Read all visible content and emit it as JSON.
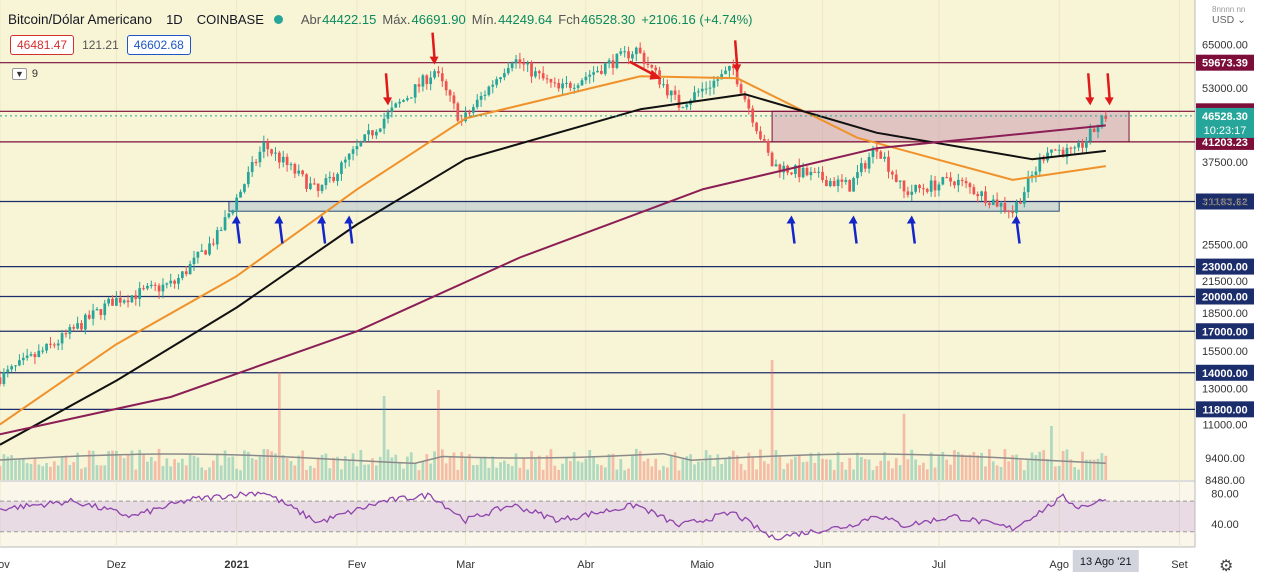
{
  "header": {
    "symbol": "Bitcoin/Dólar Americano",
    "interval": "1D",
    "exchange": "COINBASE",
    "open_label": "Abr",
    "open": "44422.15",
    "high_label": "Máx.",
    "high": "46691.90",
    "low_label": "Mín.",
    "low": "44249.64",
    "close_label": "Fch",
    "close": "46528.30",
    "change": "+2106.16 (+4.74%)"
  },
  "quote": {
    "bid": "46481.47",
    "spread": "121.21",
    "ask": "46602.68"
  },
  "indicator_toggle": {
    "count": "9"
  },
  "currency": "USD",
  "currency_menu": "8nnnn nn",
  "chart_data": {
    "type": "candlestick",
    "x_range": [
      "2020-11-01",
      "2021-09-05"
    ],
    "y_scale": "log",
    "y_range": [
      8480,
      80000
    ],
    "grid": true,
    "x_ticks": [
      "Nov",
      "Dez",
      "2021",
      "Fev",
      "Mar",
      "Abr",
      "Maio",
      "Jun",
      "Jul",
      "Ago",
      "Set"
    ],
    "cursor_date_label": "13 Ago '21",
    "y_ticks": [
      "65000.00",
      "53000.00",
      "37500.00",
      "31183.62",
      "25500.00",
      "21500.00",
      "18500.00",
      "15500.00",
      "13000.00",
      "11000.00",
      "9400.00",
      "8480.00"
    ],
    "colors": {
      "up": "#26a69a",
      "down": "#ef5350",
      "ema_short": "#f0922b",
      "ema_mid": "#111111",
      "ema_long": "#8b1f55",
      "level": "#1c2d6b",
      "resistance": "#7d0e3a",
      "volume_ma": "#8a8a8a",
      "rsi": "#8e44ad"
    },
    "horizontal_levels": [
      {
        "value": 59673.39,
        "label": "59673.39",
        "kind": "resistance"
      },
      {
        "value": 47539.7,
        "label": "47539.70",
        "kind": "resistance"
      },
      {
        "value": 41203.23,
        "label": "41203.23",
        "kind": "resistance"
      },
      {
        "value": 31183.62,
        "label": "31183.62",
        "kind": "support"
      },
      {
        "value": 23000,
        "label": "23000.00",
        "kind": "support"
      },
      {
        "value": 20000,
        "label": "20000.00",
        "kind": "support"
      },
      {
        "value": 17000,
        "label": "17000.00",
        "kind": "support"
      },
      {
        "value": 14000,
        "label": "14000.00",
        "kind": "support"
      },
      {
        "value": 11800,
        "label": "11800.00",
        "kind": "support"
      }
    ],
    "last_price": {
      "value": 46528.3,
      "label": "46528.30",
      "countdown": "10:23:17"
    },
    "zones": [
      {
        "name": "resistance-zone",
        "x": [
          "2021-05-19",
          "2021-08-19"
        ],
        "y": [
          41203.23,
          47539.7
        ],
        "color": "#c48aa8"
      },
      {
        "name": "support-zone",
        "x": [
          "2020-12-30",
          "2021-08-01"
        ],
        "y": [
          29800,
          31183.62
        ],
        "color": "#9fb8cf"
      }
    ],
    "key_points": [
      {
        "date": "2020-11-01",
        "close": 13700
      },
      {
        "date": "2020-11-15",
        "close": 16000
      },
      {
        "date": "2020-11-30",
        "close": 19600
      },
      {
        "date": "2020-12-16",
        "close": 21300
      },
      {
        "date": "2020-12-27",
        "close": 26500
      },
      {
        "date": "2021-01-08",
        "close": 40600
      },
      {
        "date": "2021-01-22",
        "close": 32500
      },
      {
        "date": "2021-02-08",
        "close": 46000
      },
      {
        "date": "2021-02-21",
        "close": 57500
      },
      {
        "date": "2021-02-28",
        "close": 45200
      },
      {
        "date": "2021-03-13",
        "close": 61000
      },
      {
        "date": "2021-03-25",
        "close": 52500
      },
      {
        "date": "2021-04-14",
        "close": 63500
      },
      {
        "date": "2021-04-25",
        "close": 49000
      },
      {
        "date": "2021-05-09",
        "close": 58000
      },
      {
        "date": "2021-05-19",
        "close": 37000
      },
      {
        "date": "2021-06-08",
        "close": 33500
      },
      {
        "date": "2021-06-15",
        "close": 40500
      },
      {
        "date": "2021-06-22",
        "close": 32500
      },
      {
        "date": "2021-07-05",
        "close": 34500
      },
      {
        "date": "2021-07-20",
        "close": 29800
      },
      {
        "date": "2021-07-29",
        "close": 40000
      },
      {
        "date": "2021-08-05",
        "close": 39000
      },
      {
        "date": "2021-08-13",
        "close": 46528
      }
    ],
    "moving_averages": [
      {
        "name": "ema-short",
        "points": [
          [
            "2020-11-01",
            11000
          ],
          [
            "2020-12-01",
            16000
          ],
          [
            "2021-01-01",
            22000
          ],
          [
            "2021-02-01",
            33000
          ],
          [
            "2021-03-01",
            46000
          ],
          [
            "2021-04-15",
            56000
          ],
          [
            "2021-05-10",
            55500
          ],
          [
            "2021-06-10",
            42000
          ],
          [
            "2021-07-20",
            34500
          ],
          [
            "2021-08-13",
            36800
          ]
        ]
      },
      {
        "name": "ema-mid",
        "points": [
          [
            "2020-11-01",
            10000
          ],
          [
            "2020-12-01",
            13500
          ],
          [
            "2021-01-01",
            19000
          ],
          [
            "2021-02-01",
            28000
          ],
          [
            "2021-03-01",
            38000
          ],
          [
            "2021-04-15",
            48000
          ],
          [
            "2021-05-12",
            51500
          ],
          [
            "2021-06-15",
            43000
          ],
          [
            "2021-07-25",
            38000
          ],
          [
            "2021-08-13",
            39500
          ]
        ]
      },
      {
        "name": "ema-long",
        "points": [
          [
            "2020-11-01",
            10500
          ],
          [
            "2020-12-15",
            12500
          ],
          [
            "2021-02-01",
            17000
          ],
          [
            "2021-03-15",
            24000
          ],
          [
            "2021-05-01",
            33000
          ],
          [
            "2021-06-15",
            40000
          ],
          [
            "2021-08-13",
            44500
          ]
        ]
      }
    ],
    "arrows": [
      {
        "date": "2021-01-01",
        "dir": "up",
        "color": "blue"
      },
      {
        "date": "2021-01-12",
        "dir": "up",
        "color": "blue"
      },
      {
        "date": "2021-01-23",
        "dir": "up",
        "color": "blue"
      },
      {
        "date": "2021-01-30",
        "dir": "up",
        "color": "blue"
      },
      {
        "date": "2021-05-24",
        "dir": "up",
        "color": "blue"
      },
      {
        "date": "2021-06-09",
        "dir": "up",
        "color": "blue"
      },
      {
        "date": "2021-06-24",
        "dir": "up",
        "color": "blue"
      },
      {
        "date": "2021-07-21",
        "dir": "up",
        "color": "blue"
      },
      {
        "date": "2021-02-09",
        "dir": "down",
        "color": "red"
      },
      {
        "date": "2021-02-21",
        "dir": "down",
        "color": "red"
      },
      {
        "date": "2021-04-20",
        "dir": "down-right",
        "color": "red"
      },
      {
        "date": "2021-05-10",
        "dir": "down",
        "color": "red"
      },
      {
        "date": "2021-08-09",
        "dir": "down",
        "color": "red"
      },
      {
        "date": "2021-08-14",
        "dir": "down",
        "color": "red"
      }
    ],
    "rsi": {
      "y_ticks": [
        "80.00",
        "40.00"
      ],
      "band": [
        30,
        70
      ],
      "points": [
        [
          "2020-11-01",
          60
        ],
        [
          "2020-11-20",
          70
        ],
        [
          "2020-12-05",
          50
        ],
        [
          "2020-12-20",
          72
        ],
        [
          "2021-01-08",
          82
        ],
        [
          "2021-01-22",
          42
        ],
        [
          "2021-02-08",
          70
        ],
        [
          "2021-02-20",
          78
        ],
        [
          "2021-03-01",
          45
        ],
        [
          "2021-03-13",
          65
        ],
        [
          "2021-03-25",
          45
        ],
        [
          "2021-04-14",
          65
        ],
        [
          "2021-04-25",
          38
        ],
        [
          "2021-05-09",
          55
        ],
        [
          "2021-05-19",
          22
        ],
        [
          "2021-06-08",
          38
        ],
        [
          "2021-06-15",
          52
        ],
        [
          "2021-06-22",
          38
        ],
        [
          "2021-07-05",
          50
        ],
        [
          "2021-07-20",
          34
        ],
        [
          "2021-08-02",
          75
        ],
        [
          "2021-08-06",
          62
        ],
        [
          "2021-08-13",
          72
        ]
      ]
    },
    "volume": {
      "spikes": [
        [
          "2021-01-12",
          0.9
        ],
        [
          "2021-02-08",
          0.7
        ],
        [
          "2021-02-22",
          0.75
        ],
        [
          "2021-05-19",
          1.0
        ],
        [
          "2021-06-22",
          0.55
        ],
        [
          "2021-07-30",
          0.45
        ]
      ],
      "base": 0.2
    }
  }
}
